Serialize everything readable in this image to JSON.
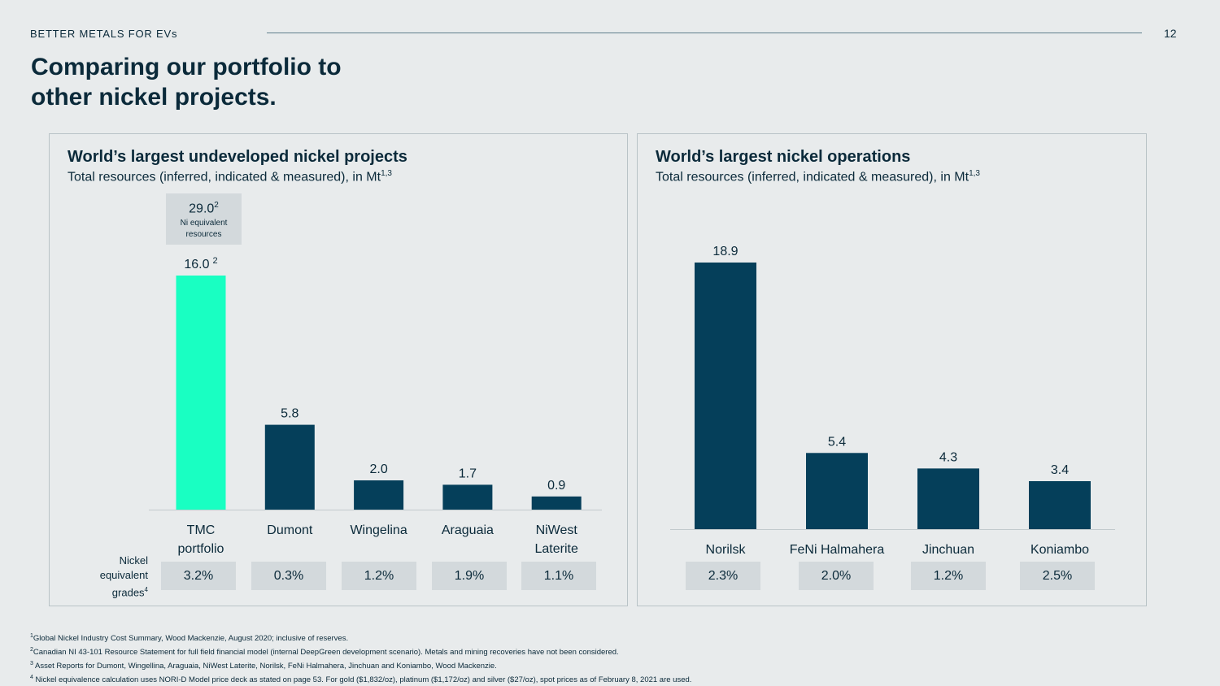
{
  "header": {
    "section_label": "BETTER METALS FOR EVs",
    "page_number": "12",
    "title_line1": "Comparing our portfolio to",
    "title_line2": "other nickel projects."
  },
  "chart_data": [
    {
      "type": "bar",
      "title": "World’s largest undeveloped nickel projects",
      "subtitle": "Total resources (inferred, indicated & measured), in Mt",
      "subtitle_sup": "1,3",
      "categories": [
        "TMC portfolio",
        "Dumont",
        "Wingelina",
        "Araguaia",
        "NiWest Laterite"
      ],
      "values": [
        16.0,
        5.8,
        2.0,
        1.7,
        0.9
      ],
      "value_labels": [
        "16.0",
        "5.8",
        "2.0",
        "1.7",
        "0.9"
      ],
      "value_label_sups": [
        "2",
        "",
        "",
        "",
        ""
      ],
      "ylim": [
        0,
        16.0
      ],
      "colors": [
        "#19ffc2",
        "#053f5a",
        "#053f5a",
        "#053f5a",
        "#053f5a"
      ],
      "callout": {
        "value": "29.0",
        "value_sup": "2",
        "line1": "Ni equivalent",
        "line2": "resources"
      },
      "grades_label_line1": "Nickel",
      "grades_label_line2": "equivalent",
      "grades_label_line3": "grades",
      "grades_label_sup": "4",
      "grades": [
        "3.2%",
        "0.3%",
        "1.2%",
        "1.9%",
        "1.1%"
      ]
    },
    {
      "type": "bar",
      "title": "World’s largest nickel operations",
      "subtitle": "Total resources (inferred, indicated & measured), in Mt",
      "subtitle_sup": "1,3",
      "categories": [
        "Norilsk",
        "FeNi Halmahera",
        "Jinchuan",
        "Koniambo"
      ],
      "values": [
        18.9,
        5.4,
        4.3,
        3.4
      ],
      "value_labels": [
        "18.9",
        "5.4",
        "4.3",
        "3.4"
      ],
      "ylim": [
        0,
        18.9
      ],
      "colors": [
        "#053f5a",
        "#053f5a",
        "#053f5a",
        "#053f5a"
      ],
      "grades": [
        "2.3%",
        "2.0%",
        "1.2%",
        "2.5%"
      ]
    }
  ],
  "footnotes": [
    {
      "sup": "1",
      "text": "Global Nickel Industry Cost Summary, Wood Mackenzie, August 2020; inclusive of reserves."
    },
    {
      "sup": "2",
      "text": "Canadian NI 43-101 Resource Statement for full field financial model (internal DeepGreen development scenario). Metals and mining recoveries have not been considered."
    },
    {
      "sup": "3",
      "text": " Asset Reports for Dumont, Wingellina, Araguaia, NiWest Laterite, Norilsk, FeNi Halmahera, Jinchuan and Koniambo, Wood Mackenzie."
    },
    {
      "sup": "4",
      "text": " Nickel equivalence calculation uses NORI-D Model price deck as stated on page 53. For gold ($1,832/oz), platinum ($1,172/oz) and silver ($27/oz), spot prices as of February 8, 2021 are used."
    }
  ]
}
